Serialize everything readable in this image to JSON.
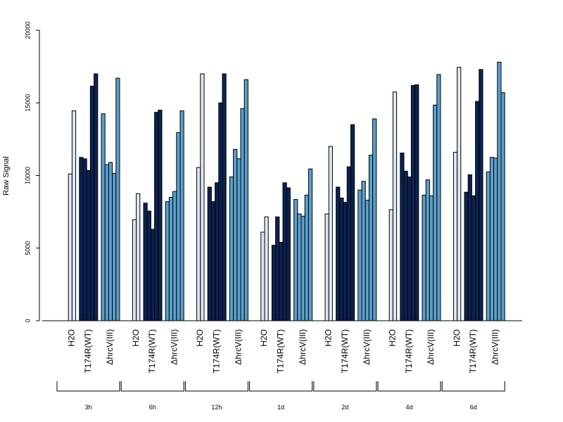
{
  "chart_data": {
    "type": "bar",
    "title": "",
    "ylabel": "Raw Signal",
    "xlabel": "",
    "ylim": [
      0,
      20000
    ],
    "yticks": [
      0,
      5000,
      10000,
      15000,
      20000
    ],
    "grid": false,
    "series": [
      {
        "name": "H2O",
        "color": "#dce7f4"
      },
      {
        "name": "T174R(WT)",
        "color": "#0c2352"
      },
      {
        "name": "ΔhrcV(III)",
        "color": "#5ca0cc"
      }
    ],
    "categories": [
      "3h",
      "6h",
      "12h",
      "1d",
      "2d",
      "4d",
      "6d"
    ],
    "groups": [
      {
        "time": "3h",
        "labels": [
          "H2O",
          "T174R(WT)",
          "ΔhrcV(III)"
        ],
        "values": [
          [
            10100,
            14450
          ],
          [
            11250,
            11150,
            10350,
            16150,
            17000
          ],
          [
            14250,
            10750,
            10900,
            10150,
            16700
          ]
        ]
      },
      {
        "time": "6h",
        "labels": [
          "H2O",
          "T174R(WT)",
          "ΔhrcV(III)"
        ],
        "values": [
          [
            6950,
            8750
          ],
          [
            8100,
            7550,
            6300,
            14350,
            14500
          ],
          [
            8200,
            8500,
            8900,
            12950,
            14450
          ]
        ]
      },
      {
        "time": "12h",
        "labels": [
          "H2O",
          "T174R(WT)",
          "ΔhrcV(III)"
        ],
        "values": [
          [
            10550,
            17000
          ],
          [
            9200,
            8200,
            9500,
            15000,
            17000
          ],
          [
            9900,
            11800,
            11150,
            14600,
            16600
          ]
        ]
      },
      {
        "time": "1d",
        "labels": [
          "H2O",
          "T174R(WT)",
          "ΔhrcV(III)"
        ],
        "values": [
          [
            6100,
            7150
          ],
          [
            5200,
            7150,
            5400,
            9500,
            9150
          ],
          [
            8350,
            7350,
            7200,
            8650,
            10450
          ]
        ]
      },
      {
        "time": "2d",
        "labels": [
          "H2O",
          "T174R(WT)",
          "ΔhrcV(III)"
        ],
        "values": [
          [
            7350,
            12000
          ],
          [
            9200,
            8450,
            8150,
            10600,
            13500
          ],
          [
            9000,
            9600,
            8300,
            11400,
            13900
          ]
        ]
      },
      {
        "time": "4d",
        "labels": [
          "H2O",
          "T174R(WT)",
          "ΔhrcV(III)"
        ],
        "values": [
          [
            7650,
            15750
          ],
          [
            11550,
            10300,
            9900,
            16200,
            16250
          ],
          [
            8650,
            9700,
            8600,
            14850,
            16950
          ]
        ]
      },
      {
        "time": "6d",
        "labels": [
          "H2O",
          "T174R(WT)",
          "ΔhrcV(III)"
        ],
        "values": [
          [
            11600,
            17450
          ],
          [
            8850,
            10050,
            8600,
            15100,
            17300
          ],
          [
            10250,
            11250,
            11200,
            17800,
            15700
          ]
        ]
      }
    ]
  }
}
